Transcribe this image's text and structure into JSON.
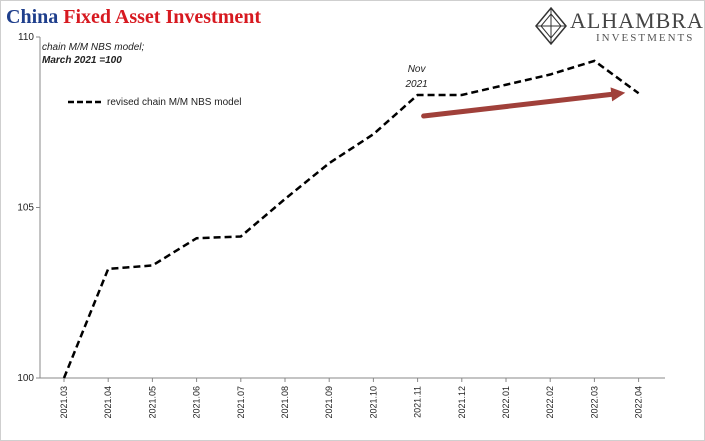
{
  "title": {
    "part1": "China",
    "part2": "Fixed Asset Investment"
  },
  "logo": {
    "name": "ALHAMBRA",
    "subtitle": "INVESTMENTS",
    "icon": "diamond-logo-icon"
  },
  "notes": {
    "line1": "chain M/M NBS model;",
    "line2": "March 2021 =100"
  },
  "annotation": {
    "line1": "Nov",
    "line2": "2021"
  },
  "colors": {
    "series": "#000000",
    "arrow": "#a0403a",
    "title_blue": "#1f3f8c",
    "title_red": "#d71920"
  },
  "chart_data": {
    "type": "line",
    "categories": [
      "2021.03",
      "2021.04",
      "2021.05",
      "2021.06",
      "2021.07",
      "2021.08",
      "2021.09",
      "2021.10",
      "2021.11",
      "2021.12",
      "2022.01",
      "2022.02",
      "2022.03",
      "2022.04"
    ],
    "series": [
      {
        "name": "revised chain M/M NBS model",
        "values": [
          100.0,
          103.2,
          103.3,
          104.1,
          104.15,
          105.25,
          106.3,
          107.15,
          108.3,
          108.3,
          108.6,
          108.9,
          109.3,
          108.35
        ],
        "style": "dashed"
      }
    ],
    "ylim": [
      100,
      110
    ],
    "yticks": [
      100,
      105,
      110
    ],
    "legend": "top-left",
    "grid": false,
    "arrow": {
      "from": 8,
      "to": 12.7,
      "y_from": 107.8,
      "y_to": 108.2
    }
  }
}
